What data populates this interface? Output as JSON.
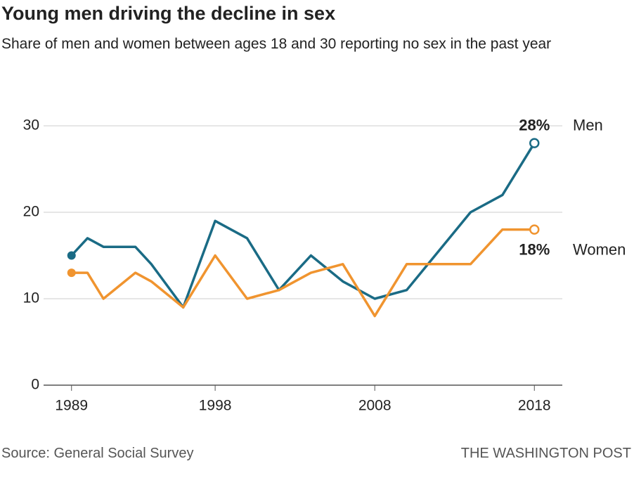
{
  "chart_data": {
    "type": "line",
    "title": "Young men driving the decline in sex",
    "subtitle": "Share of men and women between ages 18 and 30 reporting no sex in the past year",
    "source": "Source: General Social Survey",
    "credit": "THE WASHINGTON POST",
    "x": [
      1989,
      1990,
      1991,
      1993,
      1994,
      1996,
      1998,
      2000,
      2002,
      2004,
      2006,
      2008,
      2010,
      2014,
      2016,
      2018
    ],
    "series": [
      {
        "name": "Men",
        "color": "#1a6b85",
        "values": [
          15,
          17,
          16,
          16,
          14,
          9,
          19,
          17,
          11,
          15,
          12,
          10,
          11,
          20,
          22,
          28
        ],
        "value_labels": [
          null,
          null,
          null,
          null,
          null,
          null,
          null,
          null,
          null,
          null,
          null,
          null,
          null,
          null,
          null,
          "28%"
        ]
      },
      {
        "name": "Women",
        "color": "#f0942f",
        "values": [
          13,
          13,
          10,
          13,
          12,
          9,
          15,
          10,
          11,
          13,
          14,
          8,
          14,
          14,
          18,
          18
        ],
        "value_labels": [
          null,
          null,
          null,
          null,
          null,
          null,
          null,
          null,
          null,
          null,
          null,
          null,
          null,
          null,
          null,
          "18%"
        ]
      }
    ],
    "xlim": [
      1987.25,
      2019.75
    ],
    "xticks": [
      1989,
      1998,
      2008,
      2018
    ],
    "ylim": [
      0,
      30
    ],
    "yticks": [
      0,
      10,
      20,
      30
    ],
    "grid": true
  }
}
